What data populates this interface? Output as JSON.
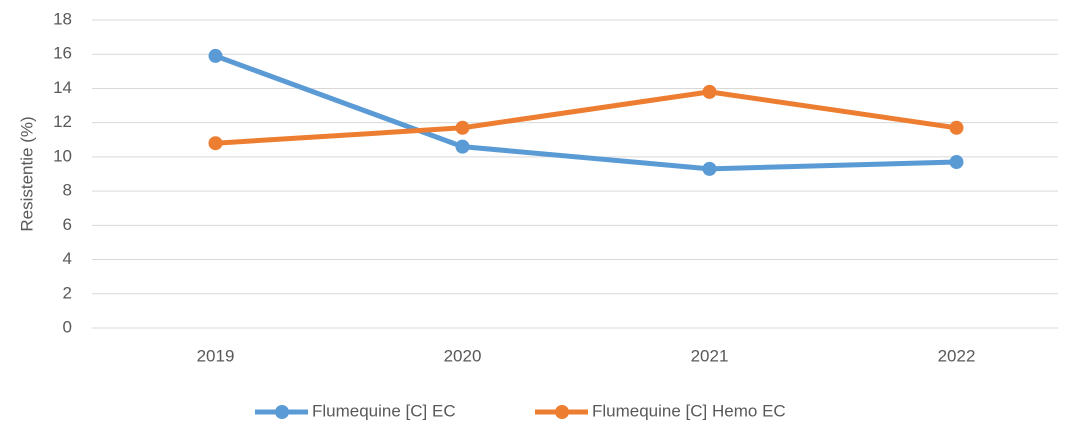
{
  "chart_data": {
    "type": "line",
    "ylabel": "Resistentie (%)",
    "categories": [
      "2019",
      "2020",
      "2021",
      "2022"
    ],
    "series": [
      {
        "name": "Flumequine [C] EC",
        "color": "#5b9bd5",
        "values": [
          15.9,
          10.6,
          9.3,
          9.7
        ]
      },
      {
        "name": "Flumequine [C] Hemo EC",
        "color": "#ed7d31",
        "values": [
          10.8,
          11.7,
          13.8,
          11.7
        ]
      }
    ],
    "ylim": [
      0,
      18
    ],
    "yticks": [
      0,
      2,
      4,
      6,
      8,
      10,
      12,
      14,
      16,
      18
    ],
    "grid": true,
    "legend": "bottom"
  }
}
